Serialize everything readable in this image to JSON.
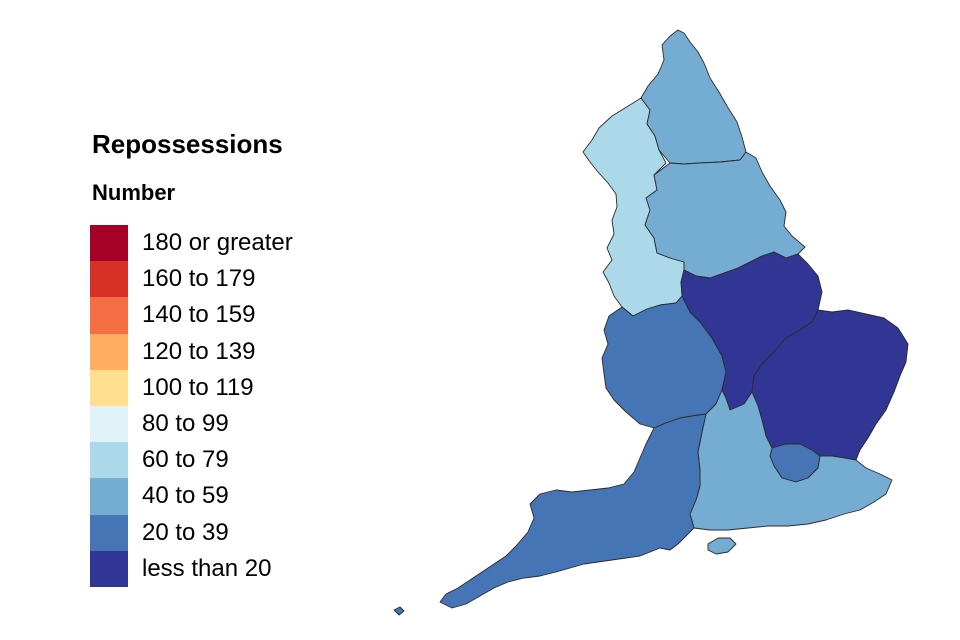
{
  "legend": {
    "title": "Repossessions",
    "subtitle": "Number",
    "bins": [
      {
        "label": "180 or greater",
        "color": "#a50026"
      },
      {
        "label": "160 to 179",
        "color": "#d73027"
      },
      {
        "label": "140 to 159",
        "color": "#f46d43"
      },
      {
        "label": "120 to 139",
        "color": "#fdae61"
      },
      {
        "label": "100 to 119",
        "color": "#fee090"
      },
      {
        "label": "80 to 99",
        "color": "#e0f3f8"
      },
      {
        "label": "60 to 79",
        "color": "#abd9e9"
      },
      {
        "label": "40 to 59",
        "color": "#74add1"
      },
      {
        "label": "20 to 39",
        "color": "#4575b4"
      },
      {
        "label": "less than 20",
        "color": "#313695"
      }
    ]
  },
  "regions": [
    {
      "id": "north-east",
      "bin": "40 to 59"
    },
    {
      "id": "north-west",
      "bin": "60 to 79"
    },
    {
      "id": "yorkshire-and-the-humber",
      "bin": "40 to 59"
    },
    {
      "id": "east-midlands",
      "bin": "less than 20"
    },
    {
      "id": "west-midlands",
      "bin": "20 to 39"
    },
    {
      "id": "east-of-england",
      "bin": "less than 20"
    },
    {
      "id": "london",
      "bin": "20 to 39"
    },
    {
      "id": "south-east",
      "bin": "40 to 59"
    },
    {
      "id": "south-west",
      "bin": "20 to 39"
    }
  ]
}
